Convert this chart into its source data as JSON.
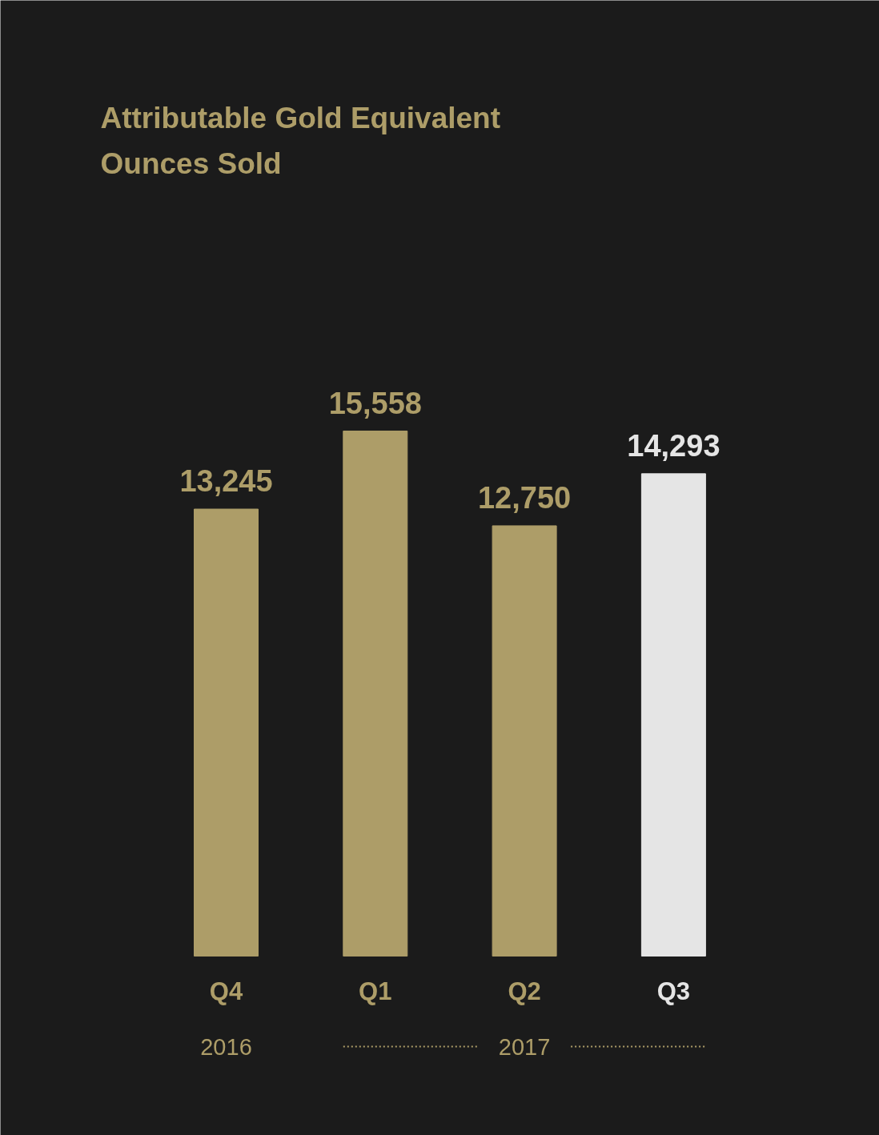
{
  "chart_data": {
    "type": "bar",
    "title": "Attributable Gold Equivalent Ounces Sold",
    "categories": [
      "Q4",
      "Q1",
      "Q2",
      "Q3"
    ],
    "values": [
      13245,
      15558,
      12750,
      14293
    ],
    "colors": [
      "#ad9d68",
      "#ad9d68",
      "#ad9d68",
      "#e5e5e5"
    ],
    "value_labels": [
      "13,245",
      "15,558",
      "12,750",
      "14,293"
    ],
    "annotations": [
      "2016",
      "2017"
    ]
  }
}
